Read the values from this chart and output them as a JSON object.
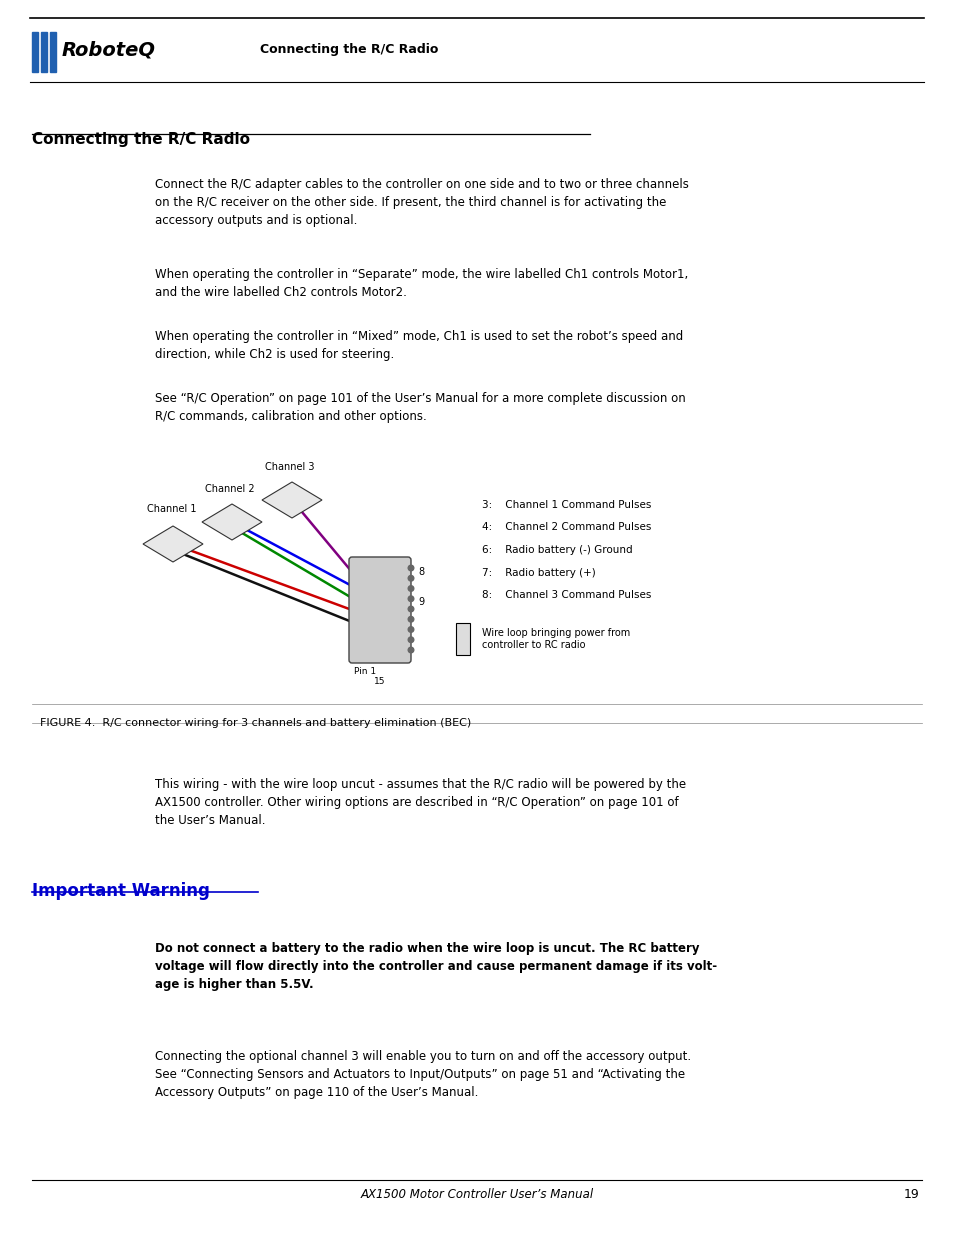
{
  "page_width": 9.54,
  "page_height": 12.35,
  "bg_color": "#ffffff",
  "header_section": "Connecting the R/C Radio",
  "section1_title": "Connecting the R/C Radio",
  "section1_para1": "Connect the R/C adapter cables to the controller on one side and to two or three channels\non the R/C receiver on the other side. If present, the third channel is for activating the\naccessory outputs and is optional.",
  "section1_para2": "When operating the controller in “Separate” mode, the wire labelled Ch1 controls Motor1,\nand the wire labelled Ch2 controls Motor2.",
  "section1_para3": "When operating the controller in “Mixed” mode, Ch1 is used to set the robot’s speed and\ndirection, while Ch2 is used for steering.",
  "section1_para4": "See “R/C Operation” on page 101 of the User’s Manual for a more complete discussion on\nR/C commands, calibration and other options.",
  "figure_caption": "FIGURE 4.  R/C connector wiring for 3 channels and battery elimination (BEC)",
  "figure_legend": [
    "3:    Channel 1 Command Pulses",
    "4:    Channel 2 Command Pulses",
    "6:    Radio battery (-) Ground",
    "7:    Radio battery (+)",
    "8:    Channel 3 Command Pulses"
  ],
  "wire_loop_text": "Wire loop bringing power from\ncontroller to RC radio",
  "below_figure_text": "This wiring - with the wire loop uncut - assumes that the R/C radio will be powered by the\nAX1500 controller. Other wiring options are described in “R/C Operation” on page 101 of\nthe User’s Manual.",
  "section2_title": "Important Warning",
  "section2_bold": "Do not connect a battery to the radio when the wire loop is uncut. The RC battery\nvoltage will flow directly into the controller and cause permanent damage if its volt-\nage is higher than 5.5V.",
  "section2_para": "Connecting the optional channel 3 will enable you to turn on and off the accessory output.\nSee “Connecting Sensors and Actuators to Input/Outputs” on page 51 and “Activating the\nAccessory Outputs” on page 110 of the User’s Manual.",
  "footer_text": "AX1500 Motor Controller User’s Manual",
  "footer_page": "19"
}
